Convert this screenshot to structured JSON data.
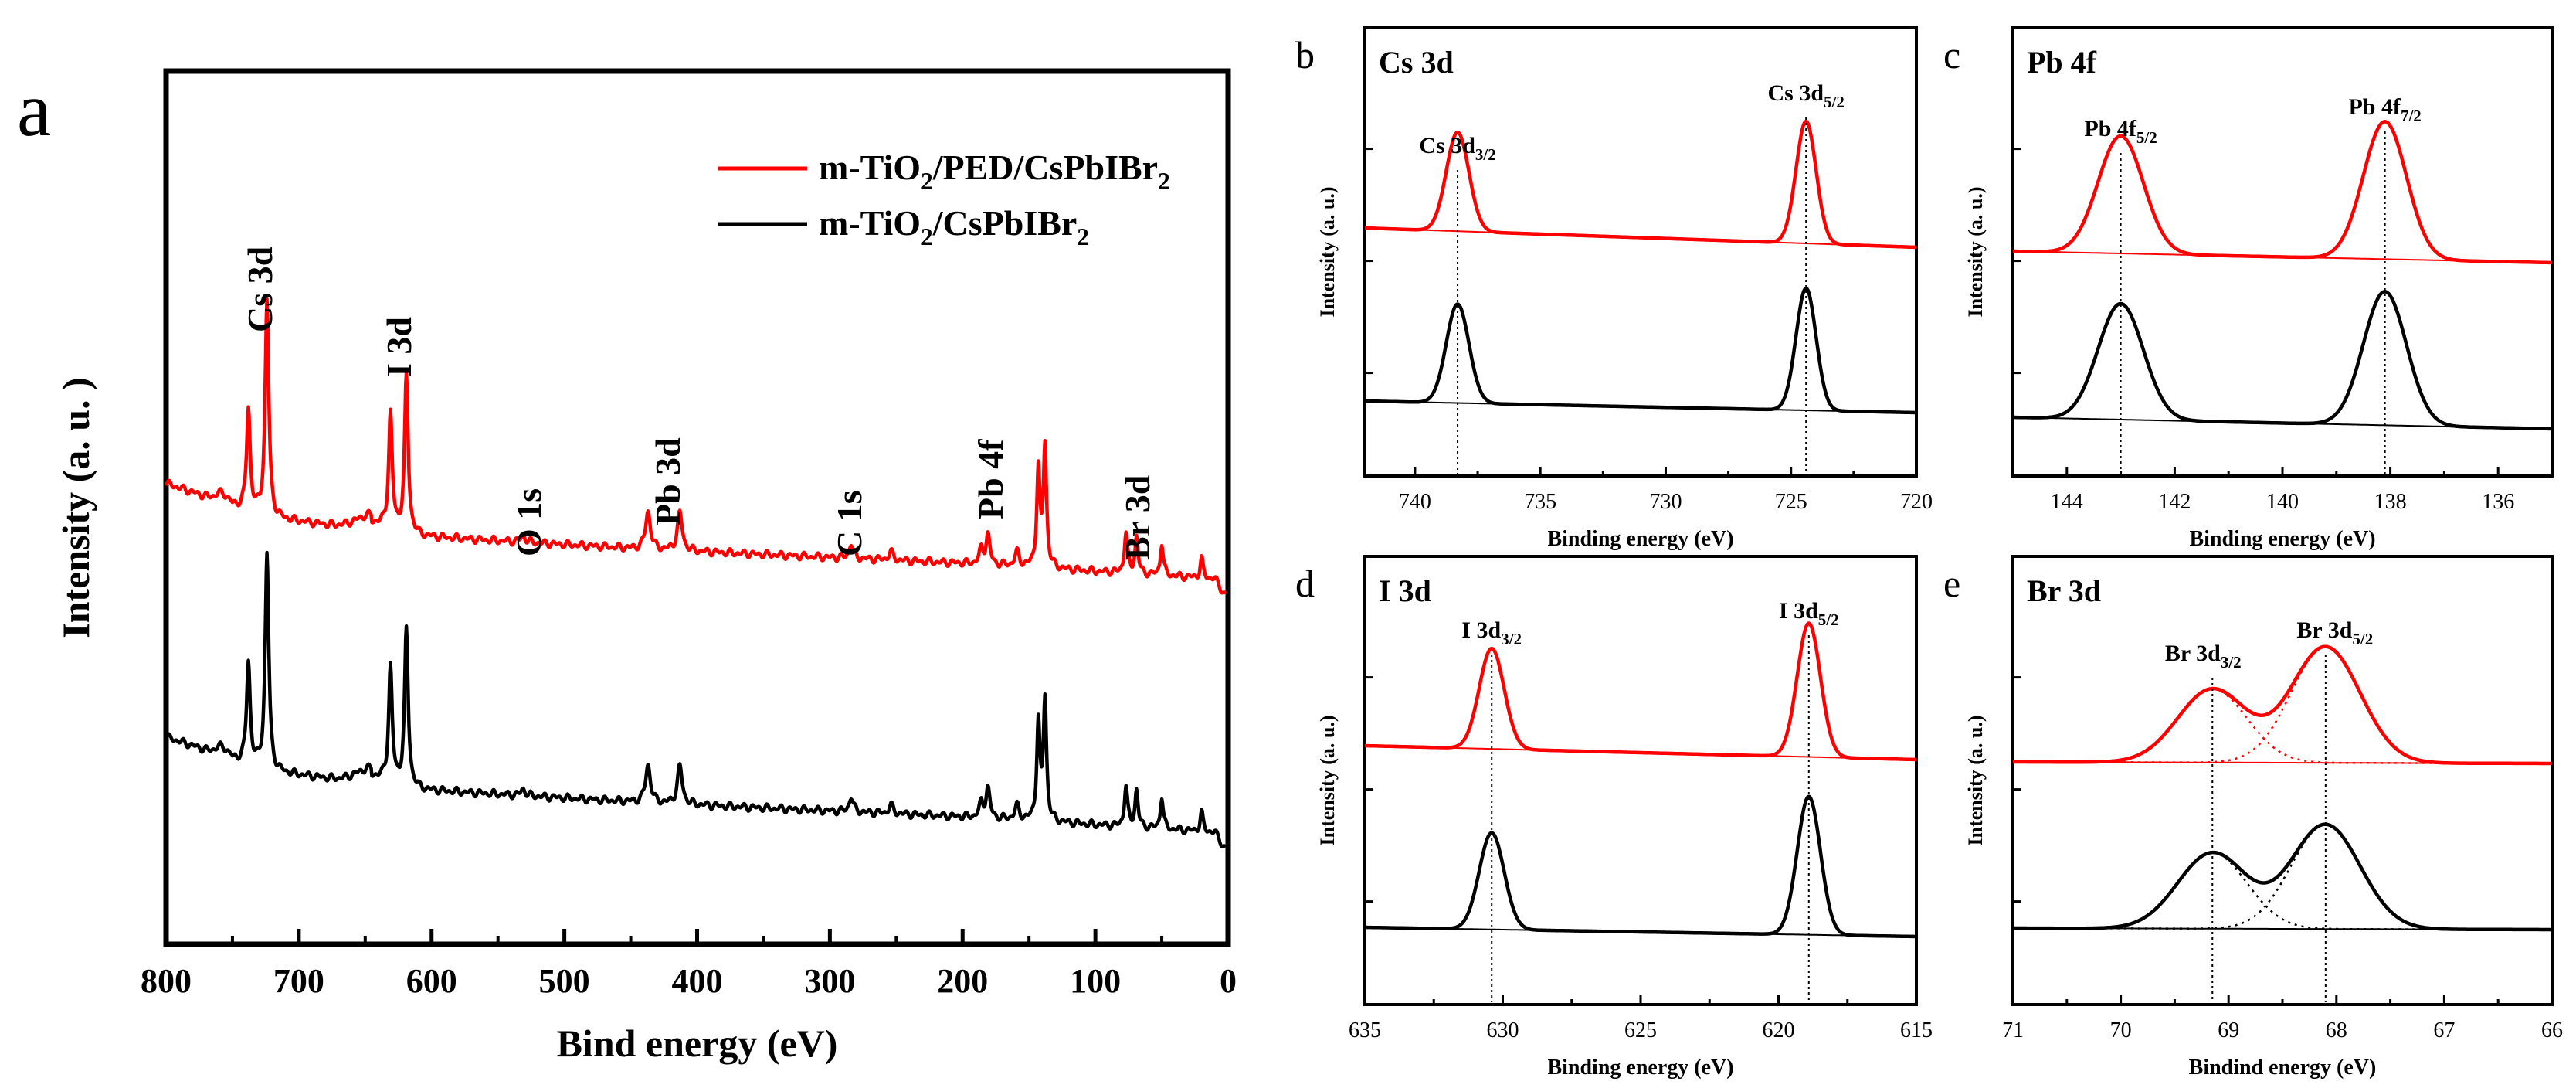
{
  "chart_data": [
    {
      "panel": "a",
      "type": "line",
      "title": "",
      "xlabel": "Bind energy (eV)",
      "ylabel": "Intensity (a. u. )",
      "xlim": [
        800,
        0
      ],
      "xticks": [
        800,
        700,
        600,
        500,
        400,
        300,
        200,
        100,
        0
      ],
      "legend": [
        "m-TiO2/PED/CsPbIBr2",
        "m-TiO2/CsPbIBr2"
      ],
      "annotations": [
        "Cs 3d",
        "I 3d",
        "O 1s",
        "Pb 3d",
        "C 1s",
        "Pb 4f",
        "Br 3d"
      ],
      "peaks_eV": [
        738,
        724,
        631,
        619,
        531,
        437,
        413,
        284,
        254,
        186,
        181,
        159,
        143,
        138,
        77,
        69,
        50,
        20
      ],
      "series": [
        {
          "name": "m-TiO2/PED/CsPbIBr2",
          "color": "#ff0000",
          "baseline_high": 0.76,
          "baseline_low": 0.0
        },
        {
          "name": "m-TiO2/CsPbIBr2",
          "color": "#000000",
          "baseline_high": 0.4,
          "baseline_low": -0.36
        }
      ]
    },
    {
      "panel": "b",
      "type": "line",
      "title": "Cs 3d",
      "xlabel": "Binding energy (eV)",
      "ylabel": "Intensity (a. u.)",
      "xlim": [
        742,
        720
      ],
      "xticks": [
        740,
        735,
        730,
        725,
        720
      ],
      "peaks": [
        {
          "label": "Cs 3d3/2",
          "x": 738.3
        },
        {
          "label": "Cs 3d5/2",
          "x": 724.4
        }
      ]
    },
    {
      "panel": "c",
      "type": "line",
      "title": "Pb 4f",
      "xlabel": "Binding energy (eV)",
      "ylabel": "Intensity (a. u.)",
      "xlim": [
        145,
        135
      ],
      "xticks": [
        144,
        142,
        140,
        138,
        136
      ],
      "peaks": [
        {
          "label": "Pb 4f5/2",
          "x": 143.0
        },
        {
          "label": "Pb 4f7/2",
          "x": 138.1
        }
      ]
    },
    {
      "panel": "d",
      "type": "line",
      "title": "I 3d",
      "xlabel": "Binding energy (eV)",
      "ylabel": "Intensity (a. u.)",
      "xlim": [
        635,
        615
      ],
      "xticks": [
        635,
        630,
        625,
        620,
        615
      ],
      "peaks": [
        {
          "label": "I 3d3/2",
          "x": 630.4
        },
        {
          "label": "I 3d5/2",
          "x": 618.9
        }
      ]
    },
    {
      "panel": "e",
      "type": "line",
      "title": "Br 3d",
      "xlabel": "Bindind energy (eV)",
      "ylabel": "Intensity (a. u.)",
      "xlim": [
        71,
        66
      ],
      "xticks": [
        71,
        70,
        69,
        68,
        67,
        66
      ],
      "peaks": [
        {
          "label": "Br 3d3/2",
          "x": 69.15
        },
        {
          "label": "Br 3d5/2",
          "x": 68.1
        }
      ]
    }
  ],
  "colors": {
    "series1": "#ff0000",
    "series2": "#000000"
  }
}
